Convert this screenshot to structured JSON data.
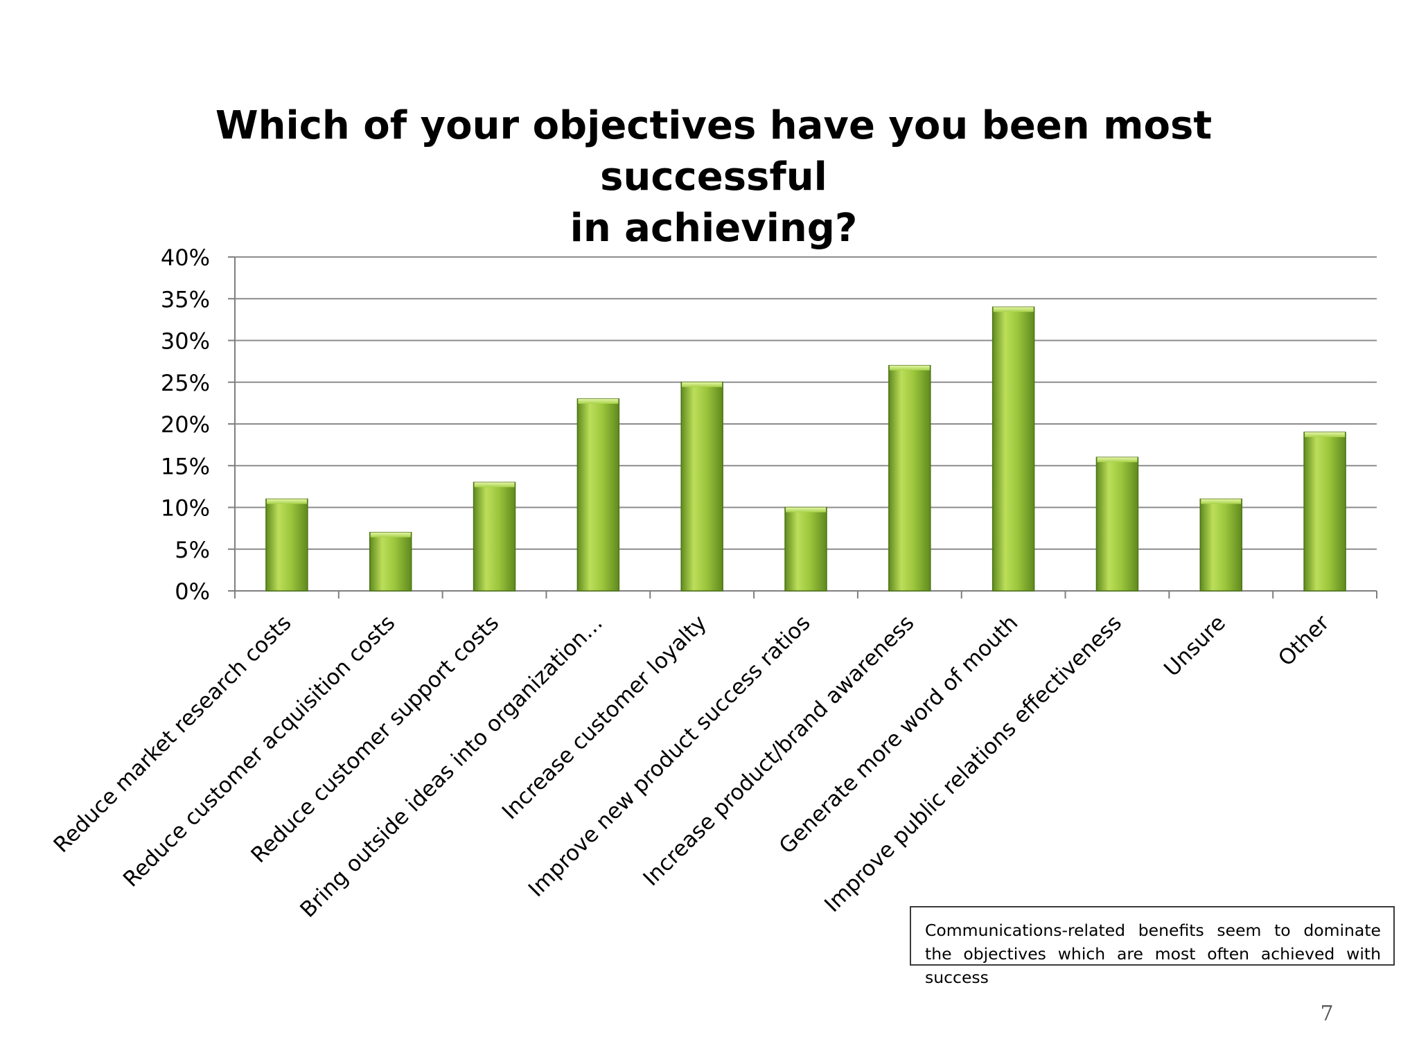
{
  "slide": {
    "title_line1": "Which of your objectives have you been most successful",
    "title_line2": "in achieving?",
    "note": "Communications-related benefits seem to dominate the objectives which are most often achieved with success",
    "page_number": "7"
  },
  "colors": {
    "bar_light": "#bcde5a",
    "bar_mid": "#9cc63c",
    "bar_dark": "#5f8a1e",
    "gridline": "#8c8c8c",
    "axis": "#7f7f7f"
  },
  "chart_data": {
    "type": "bar",
    "title": "Which of your objectives have you been most successful in achieving?",
    "xlabel": "",
    "ylabel": "",
    "ylim": [
      0,
      40
    ],
    "yticks": [
      "0%",
      "5%",
      "10%",
      "15%",
      "20%",
      "25%",
      "30%",
      "35%",
      "40%"
    ],
    "grid": true,
    "legend": "none",
    "categories": [
      "Reduce market research costs",
      "Reduce customer acquisition costs",
      "Reduce customer support costs",
      "Bring outside ideas into organization…",
      "Increase customer loyalty",
      "Improve new product success ratios",
      "Increase product/brand awareness",
      "Generate more word of mouth",
      "Improve public relations effectiveness",
      "Unsure",
      "Other"
    ],
    "values": [
      11,
      7,
      13,
      23,
      25,
      10,
      27,
      34,
      16,
      11,
      19
    ],
    "unit": "%"
  }
}
